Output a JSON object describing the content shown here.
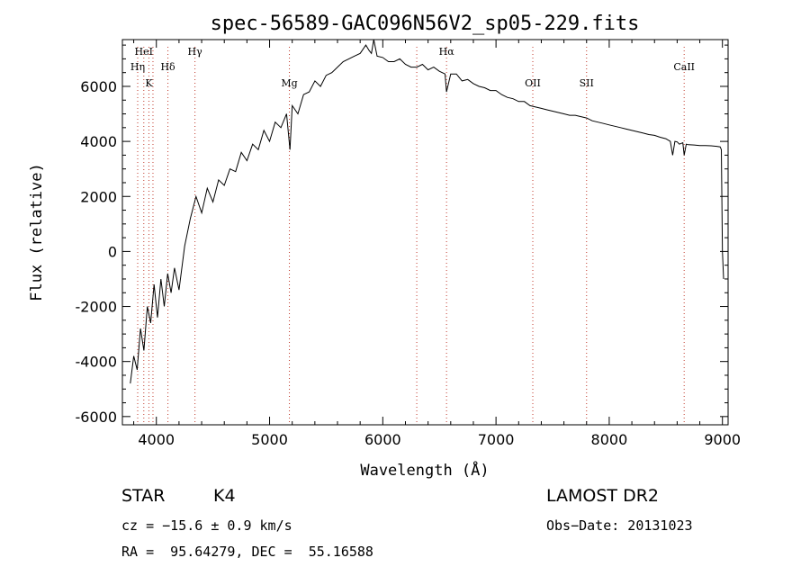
{
  "chart_data": {
    "type": "line",
    "title": "spec-56589-GAC096N56V2_sp05-229.fits",
    "xlabel": "Wavelength (Å)",
    "ylabel": "Flux (relative)",
    "xlim": [
      3700,
      9050
    ],
    "ylim": [
      -6300,
      7700
    ],
    "x_ticks": [
      4000,
      5000,
      6000,
      7000,
      8000,
      9000
    ],
    "y_ticks": [
      -6000,
      -4000,
      -2000,
      0,
      2000,
      4000,
      6000
    ],
    "grid": false,
    "series": [
      {
        "x": [
          3770,
          3800,
          3830,
          3860,
          3890,
          3920,
          3950,
          3980,
          4010,
          4040,
          4070,
          4100,
          4130,
          4160,
          4200,
          4250,
          4300,
          4350,
          4400,
          4450,
          4500,
          4550,
          4600,
          4650,
          4700,
          4750,
          4800,
          4850,
          4900,
          4950,
          5000,
          5050,
          5100,
          5150,
          5180,
          5200,
          5250,
          5300,
          5350,
          5400,
          5450,
          5500,
          5550,
          5600,
          5650,
          5700,
          5750,
          5800,
          5850,
          5880,
          5900,
          5920,
          5950,
          6000,
          6050,
          6100,
          6150,
          6200,
          6250,
          6300,
          6350,
          6400,
          6450,
          6500,
          6550,
          6563,
          6600,
          6650,
          6700,
          6750,
          6800,
          6850,
          6900,
          6950,
          7000,
          7050,
          7100,
          7150,
          7200,
          7250,
          7300,
          7350,
          7400,
          7450,
          7500,
          7550,
          7600,
          7650,
          7700,
          7750,
          7800,
          7850,
          7900,
          7950,
          8000,
          8050,
          8100,
          8150,
          8200,
          8250,
          8300,
          8350,
          8400,
          8450,
          8500,
          8540,
          8560,
          8580,
          8600,
          8620,
          8650,
          8662,
          8680,
          8700,
          8750,
          8800,
          8850,
          8900,
          8950,
          8980,
          8990,
          9000,
          9010
        ],
        "y": [
          -4800,
          -3800,
          -4300,
          -2800,
          -3600,
          -2000,
          -2600,
          -1200,
          -2400,
          -1000,
          -2000,
          -800,
          -1500,
          -600,
          -1400,
          200,
          1200,
          2000,
          1400,
          2300,
          1800,
          2600,
          2400,
          3000,
          2900,
          3600,
          3300,
          3900,
          3700,
          4400,
          4000,
          4700,
          4500,
          5000,
          3700,
          5300,
          5000,
          5700,
          5800,
          6200,
          6000,
          6400,
          6500,
          6700,
          6900,
          7000,
          7100,
          7200,
          7500,
          7300,
          7200,
          7700,
          7100,
          7050,
          6900,
          6900,
          7000,
          6800,
          6700,
          6700,
          6800,
          6600,
          6700,
          6550,
          6450,
          5800,
          6450,
          6450,
          6200,
          6250,
          6100,
          6000,
          5950,
          5850,
          5850,
          5700,
          5600,
          5550,
          5450,
          5450,
          5300,
          5250,
          5200,
          5150,
          5100,
          5050,
          5000,
          4950,
          4950,
          4900,
          4850,
          4750,
          4700,
          4650,
          4600,
          4550,
          4500,
          4450,
          4400,
          4350,
          4300,
          4250,
          4220,
          4150,
          4100,
          4000,
          3500,
          4000,
          3980,
          3900,
          3950,
          3500,
          3900,
          3880,
          3870,
          3850,
          3850,
          3840,
          3820,
          3800,
          3700,
          0,
          -1000
        ]
      }
    ],
    "annotations": [
      {
        "label": "HeI",
        "x": 3889,
        "row": 0
      },
      {
        "label": "Hη",
        "x": 3835,
        "row": 1
      },
      {
        "label": "K",
        "x": 3934,
        "row": 2
      },
      {
        "label": "Hδ",
        "x": 4102,
        "row": 1
      },
      {
        "label": "Hγ",
        "x": 4341,
        "row": 0
      },
      {
        "label": "Mg",
        "x": 5175,
        "row": 2
      },
      {
        "label": "Hα",
        "x": 6563,
        "row": 0
      },
      {
        "label": "OII",
        "x": 7325,
        "row": 2
      },
      {
        "label": "SII",
        "x": 7800,
        "row": 2
      },
      {
        "label": "CaII",
        "x": 8662,
        "row": 1
      }
    ],
    "marker_lines_x": [
      3835,
      3889,
      3934,
      3970,
      4102,
      4341,
      5175,
      6300,
      6563,
      7325,
      7800,
      8662
    ]
  },
  "info": {
    "class_label": "STAR",
    "subclass_label": "K4",
    "survey": "LAMOST DR2",
    "redshift_line": "cz = −15.6 ± 0.9 km/s",
    "obs_date": "Obs−Date: 20131023",
    "coords_line": "RA =  95.64279, DEC =  55.16588"
  }
}
